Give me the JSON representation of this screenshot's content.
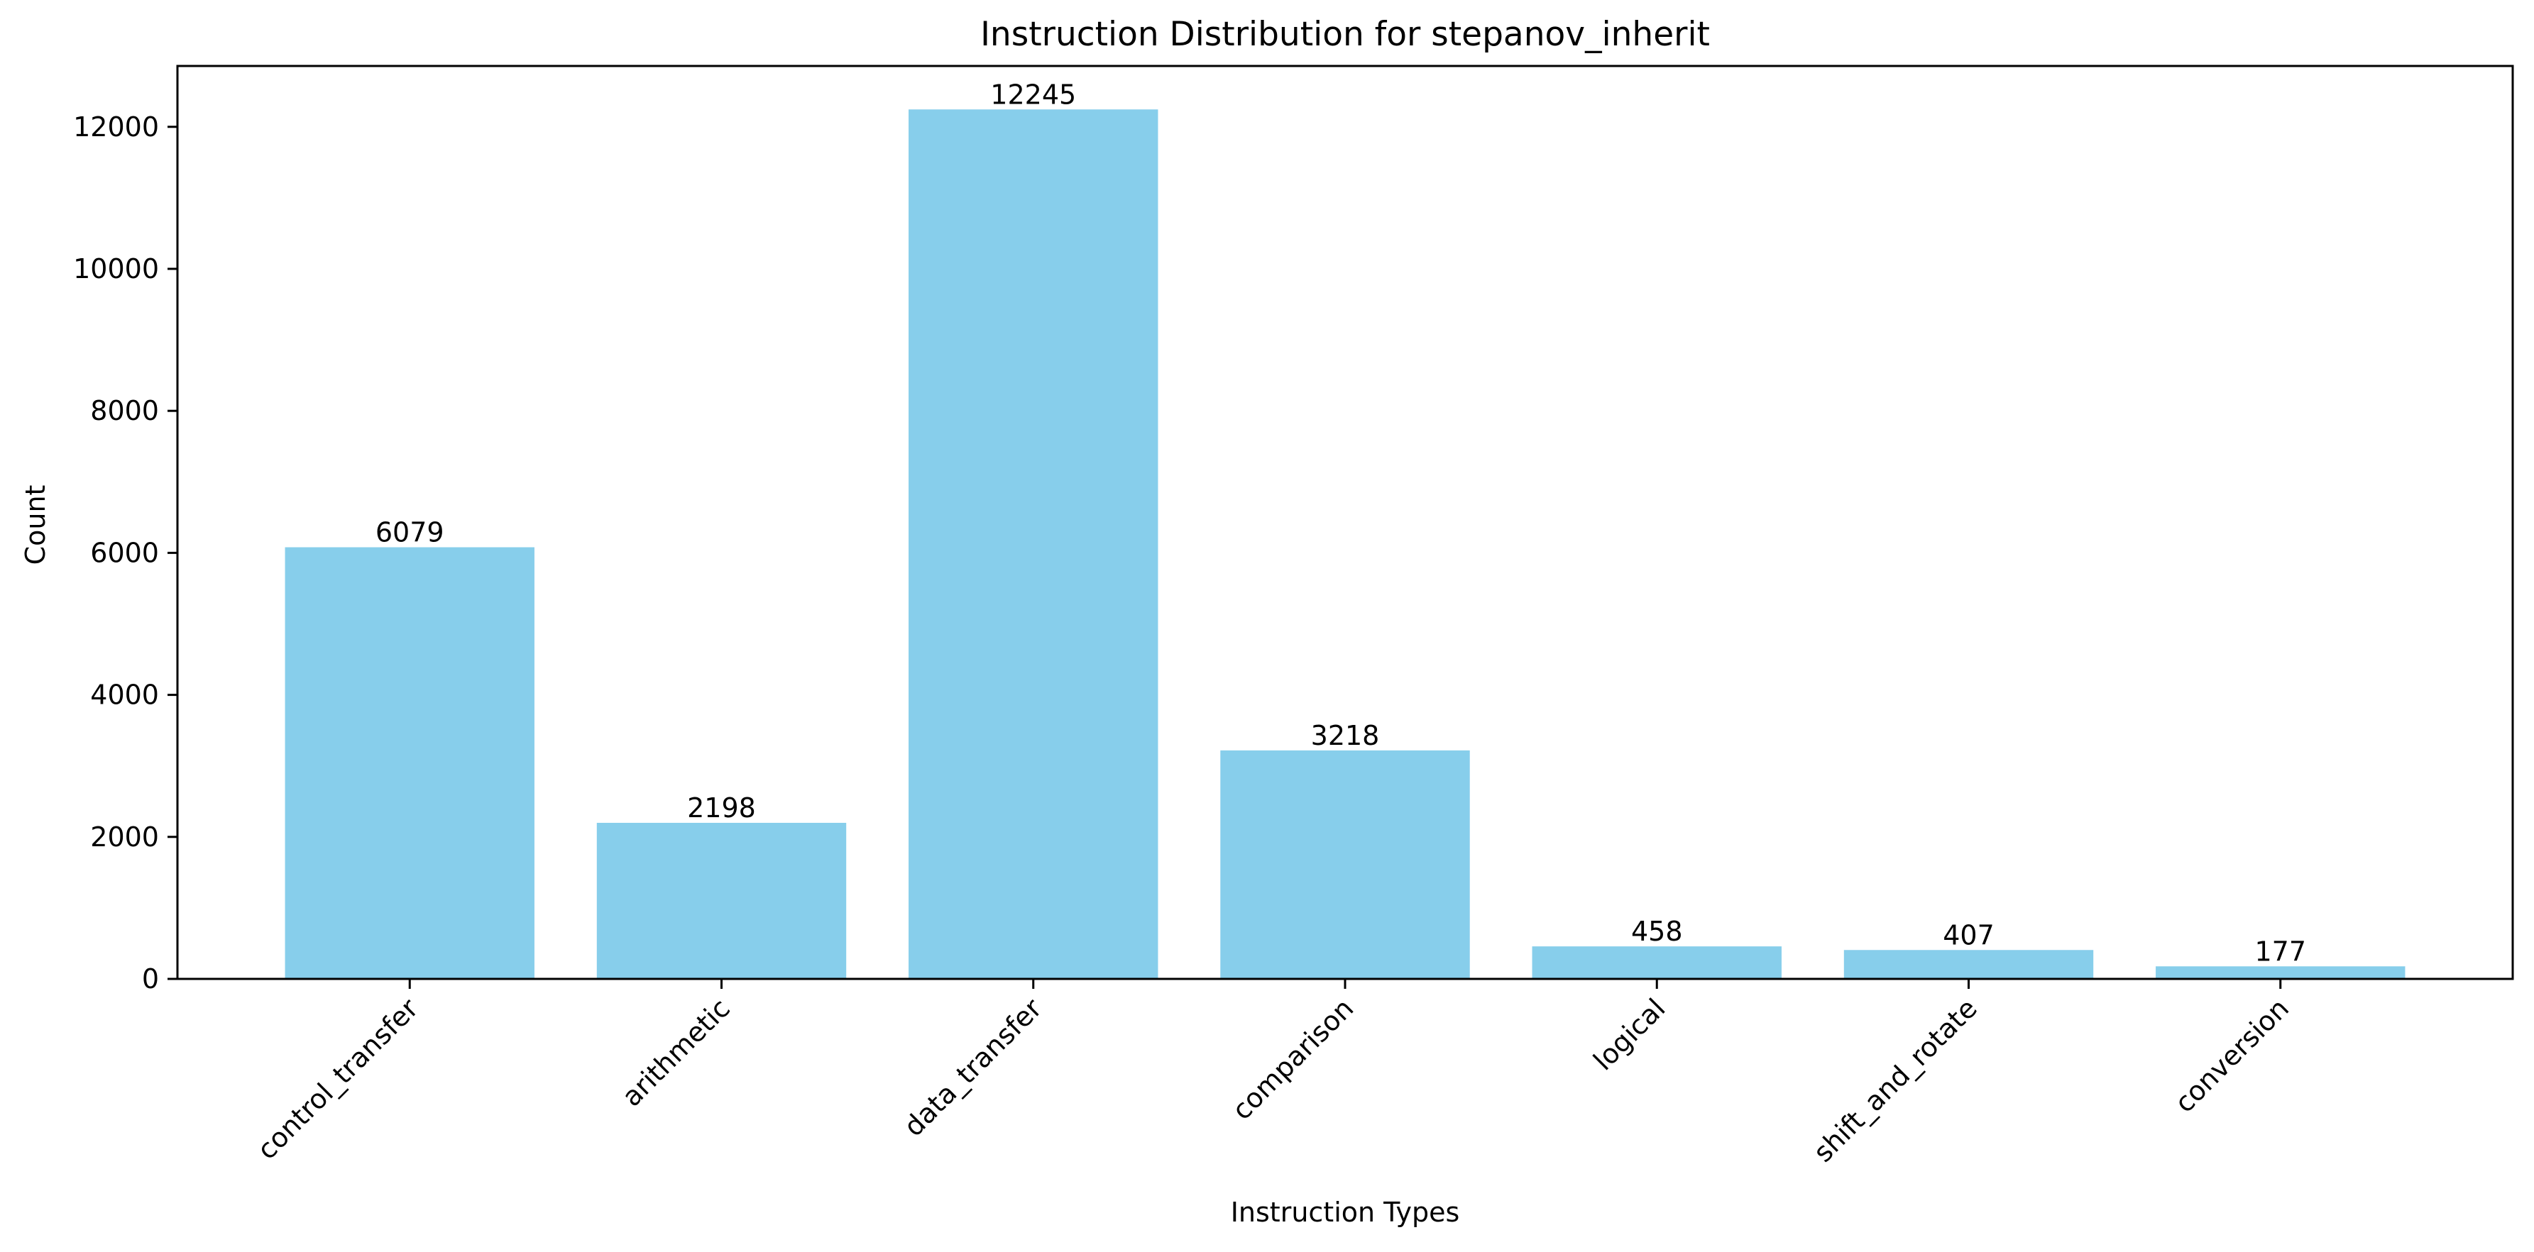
{
  "chart_data": {
    "type": "bar",
    "title": "Instruction Distribution for stepanov_inherit",
    "xlabel": "Instruction Types",
    "ylabel": "Count",
    "categories": [
      "control_transfer",
      "arithmetic",
      "data_transfer",
      "comparison",
      "logical",
      "shift_and_rotate",
      "conversion"
    ],
    "values": [
      6079,
      2198,
      12245,
      3218,
      458,
      407,
      177
    ],
    "ylim": [
      0,
      12857
    ],
    "yticks": [
      0,
      2000,
      4000,
      6000,
      8000,
      10000,
      12000
    ],
    "grid": false,
    "legend": "none",
    "colors": {
      "bar": "#87ceeb",
      "axis": "#000000",
      "text": "#000000",
      "background": "#ffffff"
    }
  }
}
